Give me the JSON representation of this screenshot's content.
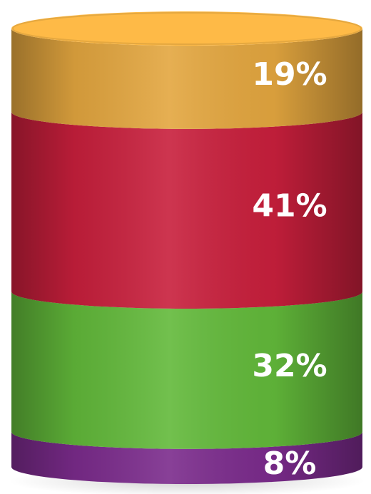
{
  "chart_data": {
    "type": "bar",
    "style": "3d-stacked-cylinder",
    "stack_order": "top-to-bottom",
    "categories": [
      "",
      "",
      "",
      ""
    ],
    "values": [
      19,
      41,
      32,
      8
    ],
    "value_labels": [
      "19%",
      "41%",
      "32%",
      "8%"
    ],
    "colors": [
      "#e3a63f",
      "#c81f3c",
      "#62b93a",
      "#7b2b8c"
    ],
    "unit": "%",
    "title": "",
    "xlabel": "",
    "ylabel": "",
    "ylim": [
      0,
      100
    ],
    "grid": false,
    "legend": "none"
  }
}
